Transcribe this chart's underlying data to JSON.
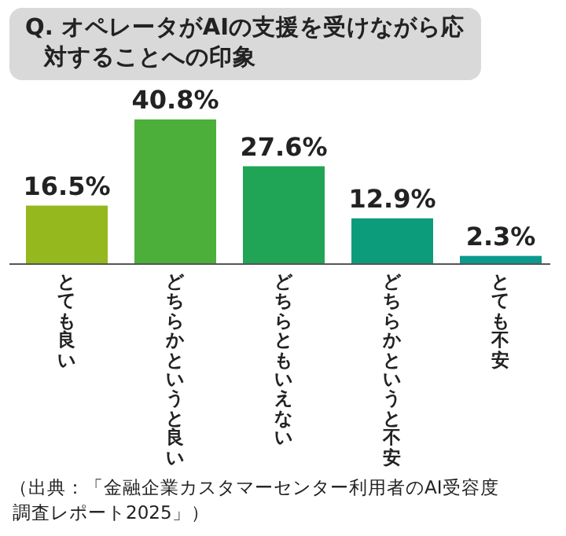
{
  "chart_data": {
    "type": "bar",
    "title": "Q. オペレータがAIの支援を受けながら応対することへの印象",
    "categories": [
      "とても良い",
      "どちらかというと良い",
      "どちらともいえない",
      "どちらかというと不安",
      "とても不安"
    ],
    "values": [
      16.5,
      40.8,
      27.6,
      12.9,
      2.3
    ],
    "colors": [
      "#95b81e",
      "#4caf3a",
      "#20a456",
      "#0c9c7c",
      "#0a9a8e"
    ],
    "value_labels": [
      "16.5%",
      "40.8%",
      "27.6%",
      "12.9%",
      "2.3%"
    ],
    "annotations": [
      "（出典：「金融企業カスタマーセンター利用者のAI受容度調査レポート2025」）"
    ]
  }
}
